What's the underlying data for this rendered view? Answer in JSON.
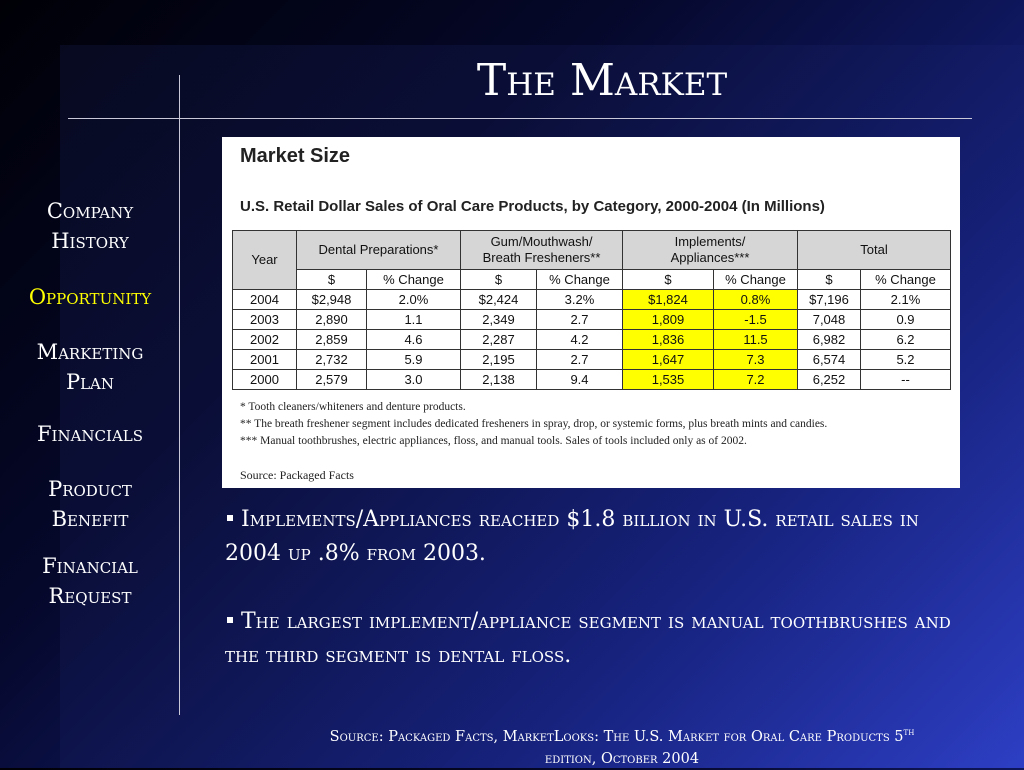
{
  "title": "The Market",
  "nav": [
    {
      "label": "Company History",
      "active": false
    },
    {
      "label": "Opportunity",
      "active": true
    },
    {
      "label": "Marketing Plan",
      "active": false
    },
    {
      "label": "Financials",
      "active": false
    },
    {
      "label": "Product Benefit",
      "active": false
    },
    {
      "label": "Financial Request",
      "active": false
    }
  ],
  "table": {
    "heading": "Market Size",
    "caption": "U.S. Retail Dollar Sales of Oral Care Products, by Category, 2000-2004 (In Millions)",
    "group_headers": [
      "Year",
      "Dental Preparations*",
      "Gum/Mouthwash/\nBreath Fresheners**",
      "Implements/\nAppliances***",
      "Total"
    ],
    "subheaders": [
      "$",
      "% Change",
      "$",
      "% Change",
      "$",
      "% Change",
      "$",
      "% Change"
    ],
    "highlight_columns": [
      5,
      6
    ],
    "rows": [
      [
        "2004",
        "$2,948",
        "2.0%",
        "$2,424",
        "3.2%",
        "$1,824",
        "0.8%",
        "$7,196",
        "2.1%"
      ],
      [
        "2003",
        "2,890",
        "1.1",
        "2,349",
        "2.7",
        "1,809",
        "-1.5",
        "7,048",
        "0.9"
      ],
      [
        "2002",
        "2,859",
        "4.6",
        "2,287",
        "4.2",
        "1,836",
        "11.5",
        "6,982",
        "6.2"
      ],
      [
        "2001",
        "2,732",
        "5.9",
        "2,195",
        "2.7",
        "1,647",
        "7.3",
        "6,574",
        "5.2"
      ],
      [
        "2000",
        "2,579",
        "3.0",
        "2,138",
        "9.4",
        "1,535",
        "7.2",
        "6,252",
        "--"
      ]
    ],
    "notes": [
      "* Tooth cleaners/whiteners and denture products.",
      "** The breath freshener segment includes dedicated fresheners in spray, drop, or systemic forms, plus breath mints and candies.",
      "*** Manual toothbrushes, electric appliances, floss, and manual tools.  Sales of tools included only as of 2002."
    ],
    "source": "Source: Packaged Facts"
  },
  "bullets": [
    "Implements/Appliances reached $1.8 billion in U.S. retail sales in 2004 up .8% from 2003.",
    "The largest implement/appliance segment is manual toothbrushes and the third segment is dental floss."
  ],
  "source": {
    "text": "Source: Packaged Facts, MarketLooks: The U.S. Market for Oral Care Products 5",
    "sup": "th",
    "rest": "edition, October 2004"
  }
}
